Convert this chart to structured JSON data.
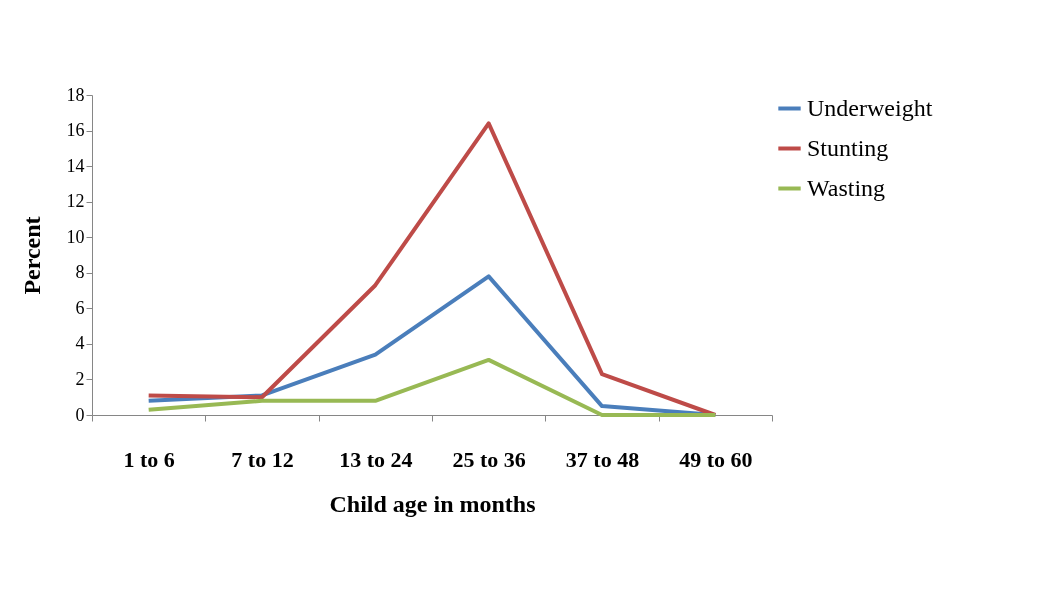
{
  "chart_data": {
    "type": "line",
    "xlabel": "Child age in months",
    "ylabel": "Percent",
    "categories": [
      "1 to 6",
      "7 to 12",
      "13 to 24",
      "25 to 36",
      "37 to 48",
      "49 to 60"
    ],
    "series": [
      {
        "name": "Underweight",
        "color": "#4a7ebb",
        "values": [
          0.8,
          1.1,
          3.4,
          7.8,
          0.5,
          0
        ]
      },
      {
        "name": "Stunting",
        "color": "#be4b48",
        "values": [
          1.1,
          1.0,
          7.3,
          16.4,
          2.3,
          0
        ]
      },
      {
        "name": "Wasting",
        "color": "#98b954",
        "values": [
          0.3,
          0.8,
          0.8,
          3.1,
          0,
          0
        ]
      }
    ],
    "ylim": [
      0,
      18
    ],
    "yticks": [
      0,
      2,
      4,
      6,
      8,
      10,
      12,
      14,
      16,
      18
    ],
    "grid": false,
    "legend": "right",
    "marker": "none",
    "line_style": "solid"
  }
}
